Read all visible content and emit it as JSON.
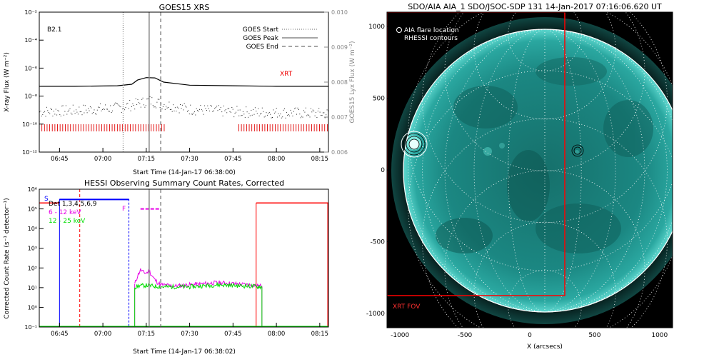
{
  "goes": {
    "title": "GOES15 XRS",
    "ylabel_left": "X-ray Flux (W m⁻²)",
    "ylabel_right": "GOES15 Lyx Flux (W m⁻²)",
    "xlabel": "Start Time (14-Jan-17 06:38:00)",
    "class_label": "B2.1",
    "xrt_label": "XRT",
    "legend": [
      {
        "label": "GOES Start",
        "style": "dotted"
      },
      {
        "label": "GOES Peak",
        "style": "solid"
      },
      {
        "label": "GOES End",
        "style": "dashed"
      }
    ],
    "left_ticks": [
      {
        "v": -2,
        "label": "10⁻²"
      },
      {
        "v": -4,
        "label": "10⁻⁴"
      },
      {
        "v": -6,
        "label": "10⁻⁶"
      },
      {
        "v": -8,
        "label": "10⁻⁸"
      },
      {
        "v": -10,
        "label": "10⁻¹⁰"
      },
      {
        "v": -12,
        "label": "10⁻¹²"
      }
    ],
    "right_ticks": [
      "0.010",
      "0.009",
      "0.008",
      "0.007",
      "0.006"
    ],
    "x_ticks": [
      "06:45",
      "07:00",
      "07:15",
      "07:30",
      "07:45",
      "08:00",
      "08:15"
    ]
  },
  "hessi": {
    "title": "HESSI Observing Summary Count Rates, Corrected",
    "ylabel": "Corrected Count Rate (s⁻¹ detector⁻¹)",
    "xlabel": "Start Time (14-Jan-17 06:38:02)",
    "legend": [
      {
        "label": "Det 1,3,4,5,6,9",
        "color": "#000000"
      },
      {
        "label": "6 - 12 keV",
        "color": "#e600e6"
      },
      {
        "label": "12 - 25 keV",
        "color": "#00dd00"
      }
    ],
    "markers": {
      "s": "S",
      "f": "F"
    },
    "y_ticks": [
      {
        "v": 6,
        "label": "10⁶"
      },
      {
        "v": 5,
        "label": "10⁵"
      },
      {
        "v": 4,
        "label": "10⁴"
      },
      {
        "v": 3,
        "label": "10³"
      },
      {
        "v": 2,
        "label": "10²"
      },
      {
        "v": 1,
        "label": "10¹"
      },
      {
        "v": 0,
        "label": "10⁰"
      },
      {
        "v": -1,
        "label": "10⁻¹"
      }
    ],
    "x_ticks": [
      "06:45",
      "07:00",
      "07:15",
      "07:30",
      "07:45",
      "08:00",
      "08:15"
    ]
  },
  "sdo": {
    "title": "SDO/AIA AIA_1 SDO/JSOC-SDP 131 14-Jan-2017 07:16:06.620 UT",
    "xlabel": "X (arcsecs)",
    "legend_1": "AIA flare location",
    "legend_2": "RHESSI contours",
    "fov_label": "XRT FOV",
    "x_ticks": [
      "-1000",
      "-500",
      "0",
      "500",
      "1000"
    ],
    "y_ticks": [
      "1000",
      "500",
      "0",
      "-500",
      "-1000"
    ]
  },
  "colors": {
    "red": "#ff0000",
    "blue": "#0000ff",
    "magenta": "#e600e6",
    "green": "#00dd00",
    "gray": "#888888",
    "sun": "#1f8f8a"
  },
  "chart_data": [
    {
      "type": "line",
      "title": "GOES15 XRS",
      "xlabel": "Start Time (14-Jan-17 06:38:00)",
      "ylabel": "X-ray Flux (W m⁻²)",
      "yscale": "log",
      "ylim": [
        "1e-12",
        "1e-2"
      ],
      "xlim_minutes_after_06:38": [
        0,
        100
      ],
      "events": {
        "goes_start": "07:07",
        "goes_peak": "07:16",
        "goes_end": "07:20"
      },
      "series": [
        {
          "name": "",
          "x": [
            "06:38",
            "06:50",
            "07:05",
            "07:10",
            "07:12",
            "07:15",
            "07:18",
            "07:21",
            "07:30",
            "07:45",
            "08:00",
            "08:18"
          ],
          "values": [
            5e-08,
            5e-08,
            5.5e-08,
            7e-08,
            1.4e-07,
            2.1e-07,
            2e-07,
            1e-07,
            6e-08,
            5.5e-08,
            5e-08,
            5e-08
          ]
        },
        {
          "name": "",
          "x": [
            "06:38",
            "06:50",
            "07:05",
            "07:12",
            "07:16",
            "07:20",
            "07:30",
            "07:45",
            "08:00",
            "08:18"
          ],
          "values": [
            8e-10,
            1e-09,
            1.5e-09,
            3e-09,
            5e-09,
            3e-09,
            1.2e-09,
            8e-10,
            7e-10,
            6e-10
          ]
        }
      ],
      "xrt_intervals": [
        [
          "06:38",
          "07:22"
        ],
        [
          "07:47",
          "08:18"
        ]
      ]
    },
    {
      "type": "line",
      "title": "HESSI Observing Summary Count Rates, Corrected",
      "xlabel": "Start Time (14-Jan-17 06:38:02)",
      "ylabel": "Corrected Count Rate (s⁻¹ detector⁻¹)",
      "yscale": "log",
      "ylim": [
        "1e-1",
        "1e6"
      ],
      "series": [
        {
          "name": "6 - 12 keV",
          "x": [
            "07:11",
            "07:12",
            "07:13",
            "07:14",
            "07:15",
            "07:16",
            "07:17",
            "07:18",
            "07:19",
            "07:20",
            "07:25",
            "07:30",
            "07:40",
            "07:50",
            "07:55"
          ],
          "values": [
            15,
            40,
            80,
            60,
            55,
            70,
            40,
            25,
            18,
            14,
            12,
            14,
            18,
            14,
            12
          ]
        },
        {
          "name": "12 - 25 keV",
          "x": [
            "07:11",
            "07:12",
            "07:15",
            "07:20",
            "07:30",
            "07:40",
            "07:50",
            "07:55"
          ],
          "values": [
            10,
            12,
            13,
            11,
            11,
            14,
            12,
            11
          ]
        },
        {
          "name": "Det 1,3,4,5,6,9",
          "x": [
            "06:45",
            "07:09"
          ],
          "values": [
            300000,
            300000
          ]
        }
      ]
    },
    {
      "type": "image",
      "title": "SDO/AIA AIA_1 SDO/JSOC-SDP 131 14-Jan-2017 07:16:06.620 UT",
      "xlabel": "X (arcsecs)",
      "xlim": [
        -1100,
        1100
      ],
      "ylim": [
        -1100,
        1100
      ],
      "xrt_fov": {
        "x": [
          -1100,
          150
        ],
        "y": [
          -880,
          1110
        ]
      },
      "flare_location": {
        "x": -910,
        "y": 200
      }
    }
  ]
}
